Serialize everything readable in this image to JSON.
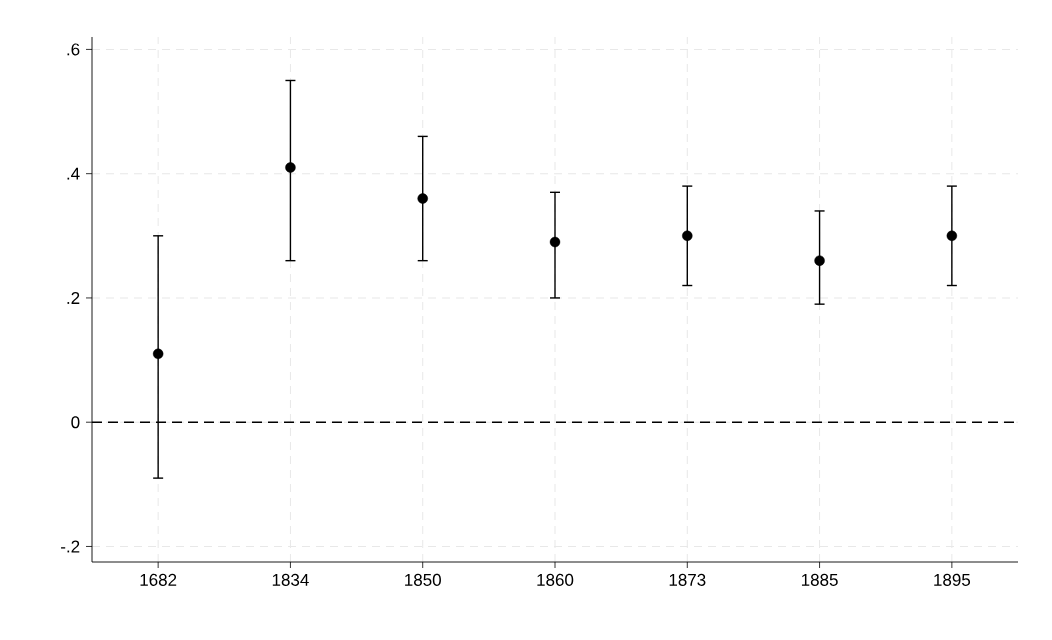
{
  "chart_data": {
    "type": "scatter",
    "categories": [
      "1682",
      "1834",
      "1850",
      "1860",
      "1873",
      "1885",
      "1895"
    ],
    "series": [
      {
        "color": "#000000",
        "values": [
          0.11,
          0.41,
          0.36,
          0.29,
          0.3,
          0.26,
          0.3
        ],
        "errors": [
          [
            -0.09,
            0.3
          ],
          [
            0.26,
            0.55
          ],
          [
            0.26,
            0.46
          ],
          [
            0.2,
            0.37
          ],
          [
            0.22,
            0.38
          ],
          [
            0.19,
            0.34
          ],
          [
            0.22,
            0.38
          ]
        ]
      }
    ],
    "ylim": [
      -0.225,
      0.62
    ],
    "yticks": [
      {
        "value": -0.2,
        "label": "-.2"
      },
      0,
      {
        "value": 0.2,
        "label": ".2"
      },
      {
        "value": 0.4,
        "label": ".4"
      },
      {
        "value": 0.6,
        "label": ".6"
      }
    ],
    "ref_lines": [
      {
        "axis": "y",
        "value": 0,
        "color": "#000000",
        "line_style": "dashed"
      }
    ],
    "grid": true,
    "marker": "circle"
  }
}
